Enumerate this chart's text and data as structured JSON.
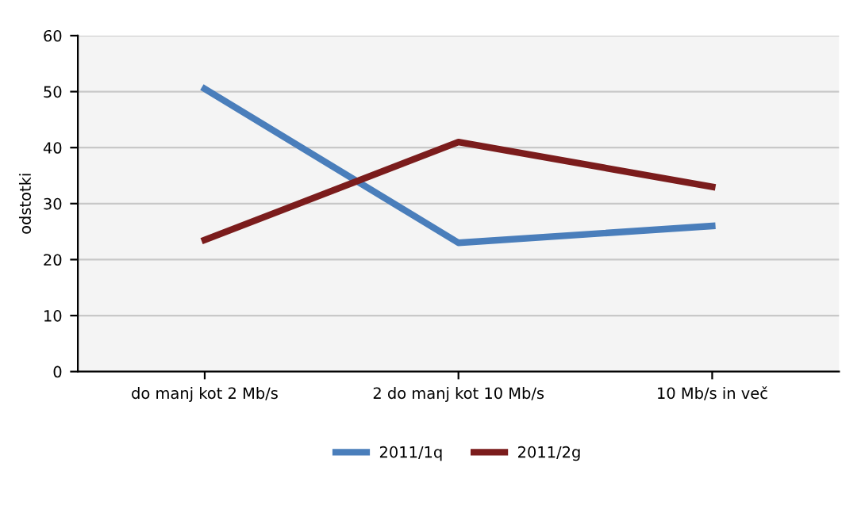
{
  "chart_data": {
    "type": "line",
    "ylabel": "odstotki",
    "categories": [
      "do manj kot 2 Mb/s",
      "2 do manj kot 10 Mb/s",
      "10 Mb/s in več"
    ],
    "series": [
      {
        "name": "2011/1q",
        "color": "#4a7ebb",
        "values": [
          50.5,
          23,
          26
        ]
      },
      {
        "name": "2011/2g",
        "color": "#7b1c1c",
        "values": [
          23.5,
          41,
          33
        ]
      }
    ],
    "ylim": [
      0,
      60
    ],
    "yticks": [
      0,
      10,
      20,
      30,
      40,
      50,
      60
    ],
    "grid": "y",
    "legend": "bottom",
    "marker": "none",
    "line_style": "solid"
  }
}
